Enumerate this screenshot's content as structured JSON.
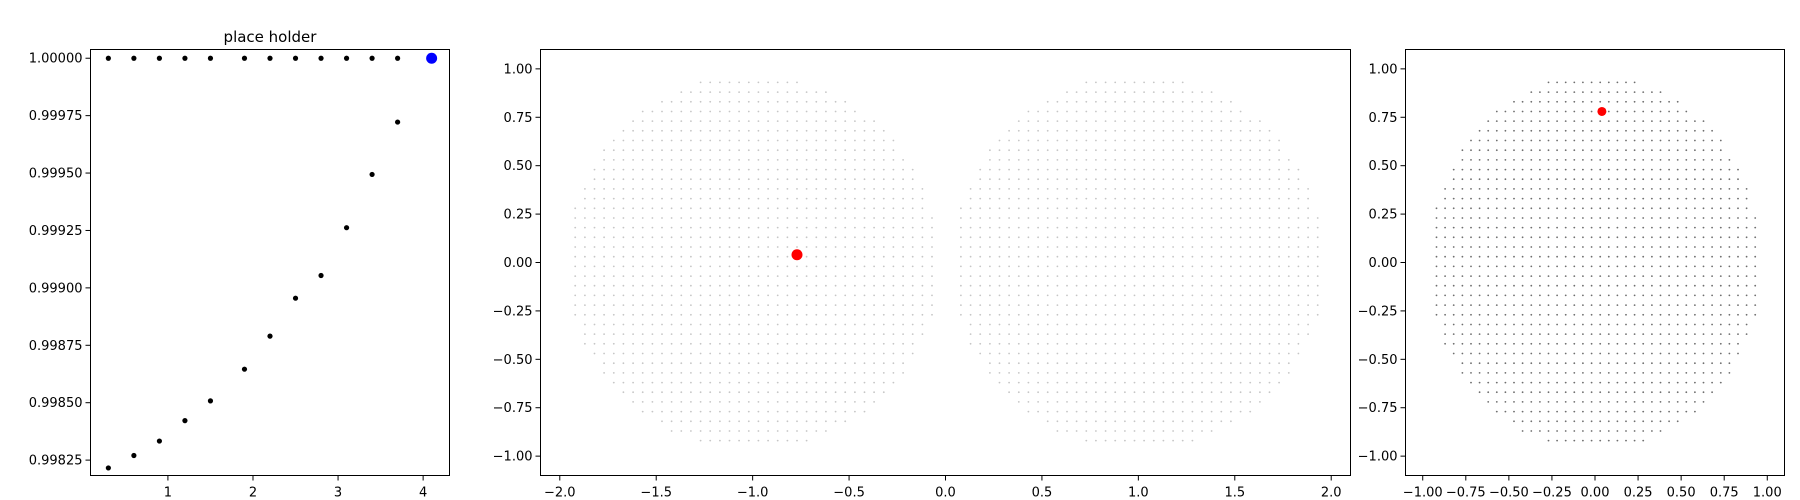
{
  "chart_data": [
    {
      "type": "scatter",
      "title": "place holder",
      "xlabel": "",
      "ylabel": "",
      "xlim": [
        0.09,
        4.31
      ],
      "ylim": [
        0.998183,
        1.000038
      ],
      "grid": false,
      "xticks": [
        1,
        2,
        3,
        4
      ],
      "yticks": [
        "0.99825",
        "0.99850",
        "0.99875",
        "0.99900",
        "0.99925",
        "0.99950",
        "0.99975",
        "1.00000"
      ],
      "series": [
        {
          "color": "#000000",
          "marker": "small-dot",
          "x": [
            0.3,
            0.6,
            0.9,
            1.2,
            1.5,
            1.9,
            2.2,
            2.5,
            2.8,
            3.1,
            3.4,
            3.7
          ],
          "y": [
            1.0,
            1.0,
            1.0,
            1.0,
            1.0,
            1.0,
            1.0,
            1.0,
            1.0,
            1.0,
            1.0,
            1.0
          ]
        },
        {
          "color": "#000000",
          "marker": "small-dot",
          "x": [
            0.3,
            0.6,
            0.9,
            1.2,
            1.5,
            1.9,
            2.2,
            2.5,
            2.8,
            3.1,
            3.4,
            3.7
          ],
          "y": [
            0.998216,
            0.99827,
            0.998333,
            0.998422,
            0.998508,
            0.998646,
            0.99879,
            0.998955,
            0.999054,
            0.999262,
            0.999494,
            0.999722
          ]
        },
        {
          "color": "#0000ff",
          "marker": "large-dot",
          "x": [
            4.1
          ],
          "y": [
            1.0
          ]
        }
      ]
    },
    {
      "type": "scatter",
      "title": "",
      "xlabel": "",
      "ylabel": "",
      "xlim": [
        -2.1,
        2.1
      ],
      "ylim": [
        -1.1,
        1.1
      ],
      "grid": false,
      "xticks": [
        "−2.0",
        "−1.5",
        "−1.0",
        "−0.5",
        "0.0",
        "0.5",
        "1.0",
        "1.5",
        "2.0"
      ],
      "yticks": [
        "−1.00",
        "−0.75",
        "−0.50",
        "−0.25",
        "0.00",
        "0.25",
        "0.50",
        "0.75",
        "1.00"
      ],
      "cloud": {
        "description_shape": "two-touching-discs",
        "color": "#808080",
        "disc_centers_x": [
          -1.0,
          1.0
        ],
        "disc_radius": 0.97
      },
      "highlight": {
        "color": "#ff0000",
        "x": -0.77,
        "y": 0.04
      }
    },
    {
      "type": "scatter",
      "title": "",
      "xlabel": "",
      "ylabel": "",
      "xlim": [
        -1.1,
        1.1
      ],
      "ylim": [
        -1.1,
        1.1
      ],
      "grid": false,
      "xticks": [
        "−1.00",
        "−0.75",
        "−0.50",
        "−0.25",
        "0.00",
        "0.25",
        "0.50",
        "0.75",
        "1.00"
      ],
      "yticks": [
        "−1.00",
        "−0.75",
        "−0.50",
        "−0.25",
        "0.00",
        "0.25",
        "0.50",
        "0.75",
        "1.00"
      ],
      "cloud": {
        "description_shape": "disc",
        "color": "#303030",
        "disc_centers_x": [
          0.0
        ],
        "disc_radius": 0.97
      },
      "highlight": {
        "color": "#ff0000",
        "x": 0.04,
        "y": 0.78
      }
    }
  ]
}
